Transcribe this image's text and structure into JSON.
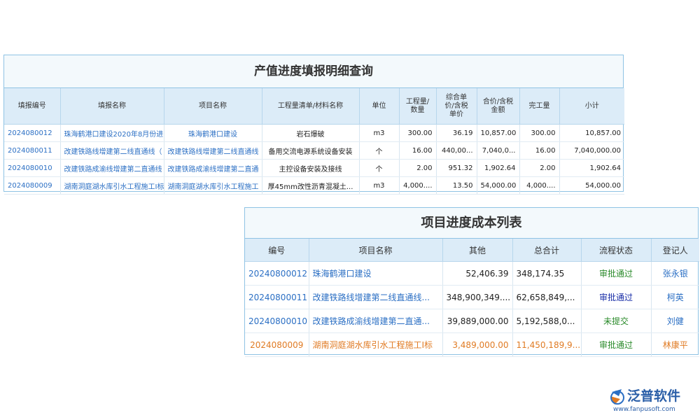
{
  "table1": {
    "title": "产值进度填报明细查询",
    "headers": [
      [
        "填报编号"
      ],
      [
        "填报名称"
      ],
      [
        "项目名称"
      ],
      [
        "工程量清单/材料名称"
      ],
      [
        "单位"
      ],
      [
        "工程量/",
        "数量"
      ],
      [
        "综合单",
        "价/含税",
        "单价"
      ],
      [
        "合价/含税",
        "金额"
      ],
      [
        "完工量"
      ],
      [
        "小计"
      ]
    ],
    "rows": [
      [
        "2024080012",
        "珠海鹤港口建设2020年8月份进",
        "珠海鹤港口建设",
        "岩石爆破",
        "m3",
        "300.00",
        "36.19",
        "10,857.00",
        "300.00",
        "10,857.00"
      ],
      [
        "2024080011",
        "改建铁路线增建第二线直通线（",
        "改建铁路线增建第二线直通线",
        "备用交流电源系统设备安装",
        "个",
        "16.00",
        "440,00...",
        "7,040,0...",
        "16.00",
        "7,040,000.00"
      ],
      [
        "2024080010",
        "改建铁路成渝线增建第二直通线",
        "改建铁路成渝线增建第二直通",
        "主控设备安装及接线",
        "个",
        "2.00",
        "951.32",
        "1,902.64",
        "2.00",
        "1,902.64"
      ],
      [
        "2024080009",
        "湖南洞庭湖水库引水工程施工I标",
        "湖南洞庭湖水库引水工程施工",
        "厚45mm改性沥青混凝土...",
        "m3",
        "4,000....",
        "13.50",
        "54,000.00",
        "4,000....",
        "54,000.00"
      ]
    ]
  },
  "table2": {
    "title": "项目进度成本列表",
    "headers": [
      "编号",
      "项目名称",
      "其他",
      "总合计",
      "流程状态",
      "登记人"
    ],
    "rows": [
      [
        "20240800012",
        "珠海鹤港口建设",
        "52,406.39",
        "348,174.35",
        "审批通过",
        "张永银"
      ],
      [
        "20240800011",
        "改建铁路线增建第二线直通线...",
        "348,900,349....",
        "62,658,849,...",
        "审批通过",
        "柯英"
      ],
      [
        "20240800010",
        "改建铁路成渝线增建第二直通...",
        "39,889,000.00",
        "5,192,588,0...",
        "未提交",
        "刘健"
      ],
      [
        "2024080009",
        "湖南洞庭湖水库引水工程施工I标",
        "3,489,000.00",
        "11,450,189,9...",
        "审批通过",
        "林康平"
      ]
    ]
  },
  "logo": {
    "name": "泛普软件",
    "url": "www.fanpusoft.com"
  }
}
